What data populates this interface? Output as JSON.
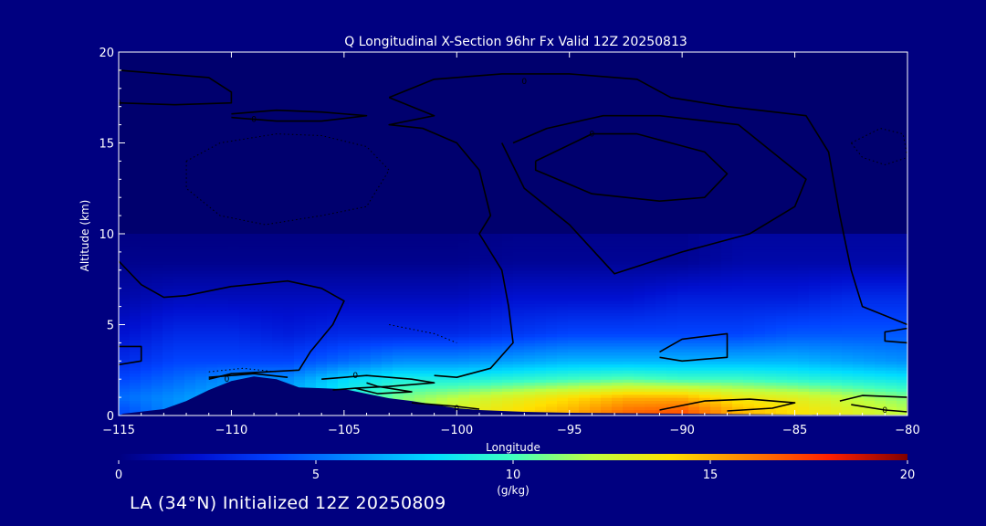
{
  "footer_label": "LA (34°N) Initialized 12Z 20250809",
  "chart_data": {
    "type": "heatmap",
    "title": "Q Longitudinal X-Section 96hr  Fx Valid 12Z 20250813",
    "xlabel": "Longitude",
    "ylabel": "Altitude (km)",
    "xlim": [
      -115,
      -80
    ],
    "ylim": [
      0,
      20
    ],
    "x_ticks": [
      -115,
      -110,
      -105,
      -100,
      -95,
      -90,
      -85,
      -80
    ],
    "y_ticks": [
      0,
      5,
      10,
      15,
      20
    ],
    "x_tick_labels": [
      "−115",
      "−110",
      "−105",
      "−100",
      "−95",
      "−90",
      "−85",
      "−80"
    ],
    "y_tick_labels": [
      "0",
      "5",
      "10",
      "15",
      "20"
    ],
    "colorbar": {
      "label": "(g/kg)",
      "range": [
        0,
        20
      ],
      "ticks": [
        0,
        5,
        10,
        15,
        20
      ],
      "tick_labels": [
        "0",
        "5",
        "10",
        "15",
        "20"
      ],
      "colormap": "rainbow (dark blue → cyan → yellow → red → dark red)"
    },
    "moisture_profiles": [
      {
        "lon": -115,
        "q": [
          4,
          5,
          4,
          3,
          2,
          1,
          0.3
        ]
      },
      {
        "lon": -112.5,
        "q": [
          6,
          6,
          5,
          4,
          3,
          1.5,
          0.3
        ]
      },
      {
        "lon": -110,
        "q": [
          7,
          7,
          6,
          4,
          3,
          1.5,
          0.3
        ]
      },
      {
        "lon": -107.5,
        "q": [
          7,
          7,
          6,
          4,
          2.5,
          1.5,
          0.3
        ]
      },
      {
        "lon": -105,
        "q": [
          9,
          9,
          8,
          5,
          3,
          1.5,
          0.3
        ]
      },
      {
        "lon": -102.5,
        "q": [
          11,
          11,
          9,
          6,
          3,
          1.5,
          0.3
        ]
      },
      {
        "lon": -100,
        "q": [
          13,
          12,
          9,
          6,
          3,
          1.5,
          0.3
        ]
      },
      {
        "lon": -97.5,
        "q": [
          14,
          13,
          9.5,
          6.5,
          3.5,
          2,
          0.5
        ]
      },
      {
        "lon": -95,
        "q": [
          15,
          14,
          10,
          7,
          4,
          2,
          0.5
        ]
      },
      {
        "lon": -92.5,
        "q": [
          16.5,
          15,
          10.5,
          7,
          4,
          2,
          0.5
        ]
      },
      {
        "lon": -90,
        "q": [
          17,
          15,
          10,
          7,
          4,
          2.5,
          0.5
        ]
      },
      {
        "lon": -87.5,
        "q": [
          15,
          13.5,
          10,
          7,
          4,
          2.5,
          1
        ]
      },
      {
        "lon": -85,
        "q": [
          14,
          13,
          9.5,
          7,
          4.5,
          2.5,
          1
        ]
      },
      {
        "lon": -82.5,
        "q": [
          13,
          12,
          9,
          6.5,
          4.5,
          3,
          1
        ]
      },
      {
        "lon": -80,
        "q": [
          12,
          11,
          8.5,
          6,
          4.5,
          3,
          1
        ]
      }
    ],
    "profile_levels_km": [
      0.2,
      1,
      2,
      3,
      4.5,
      6.5,
      8.5
    ],
    "terrain": [
      {
        "lon": -115,
        "alt": 0
      },
      {
        "lon": -114.8,
        "alt": 0.1
      },
      {
        "lon": -113,
        "alt": 0.35
      },
      {
        "lon": -112,
        "alt": 0.8
      },
      {
        "lon": -111,
        "alt": 1.4
      },
      {
        "lon": -110,
        "alt": 1.9
      },
      {
        "lon": -109,
        "alt": 2.15
      },
      {
        "lon": -108,
        "alt": 2.0
      },
      {
        "lon": -107,
        "alt": 1.55
      },
      {
        "lon": -106,
        "alt": 1.5
      },
      {
        "lon": -105,
        "alt": 1.45
      },
      {
        "lon": -104,
        "alt": 1.2
      },
      {
        "lon": -103,
        "alt": 0.95
      },
      {
        "lon": -102,
        "alt": 0.8
      },
      {
        "lon": -101,
        "alt": 0.6
      },
      {
        "lon": -100,
        "alt": 0.4
      },
      {
        "lon": -99,
        "alt": 0.3
      },
      {
        "lon": -97,
        "alt": 0.2
      },
      {
        "lon": -95,
        "alt": 0.15
      },
      {
        "lon": -90,
        "alt": 0.1
      },
      {
        "lon": -85,
        "alt": 0.05
      },
      {
        "lon": -80,
        "alt": 0.03
      }
    ],
    "contours": [
      {
        "label": "0",
        "label_at": [
          -115,
          17.2
        ],
        "points": [
          [
            -115,
            19
          ],
          [
            -113,
            18.8
          ],
          [
            -111,
            18.6
          ],
          [
            -110,
            17.8
          ],
          [
            -110,
            17.2
          ],
          [
            -112.5,
            17.1
          ],
          [
            -115,
            17.2
          ]
        ]
      },
      {
        "label": "0",
        "label_at": [
          -109,
          16.3
        ],
        "points": [
          [
            -110,
            16.6
          ],
          [
            -108,
            16.8
          ],
          [
            -106,
            16.7
          ],
          [
            -104,
            16.5
          ],
          [
            -106,
            16.2
          ],
          [
            -108,
            16.2
          ],
          [
            -110,
            16.4
          ]
        ]
      },
      {
        "label": "0",
        "label_at": [
          -97,
          18.4
        ],
        "points": [
          [
            -103,
            17.5
          ],
          [
            -101,
            18.5
          ],
          [
            -98,
            18.8
          ],
          [
            -95,
            18.8
          ],
          [
            -92,
            18.5
          ],
          [
            -90.5,
            17.5
          ],
          [
            -88,
            17
          ],
          [
            -84.5,
            16.5
          ],
          [
            -83.5,
            14.5
          ],
          [
            -83,
            11
          ],
          [
            -82.5,
            8
          ],
          [
            -82,
            6
          ],
          [
            -80,
            5
          ]
        ]
      },
      {
        "label": "",
        "points": [
          [
            -103,
            17.5
          ],
          [
            -101,
            16.5
          ],
          [
            -103,
            16
          ],
          [
            -101.5,
            15.8
          ],
          [
            -100,
            15
          ],
          [
            -99,
            13.5
          ],
          [
            -98.5,
            11
          ],
          [
            -99,
            10
          ],
          [
            -98,
            8
          ],
          [
            -97.7,
            6
          ],
          [
            -97.5,
            4
          ],
          [
            -98.5,
            2.6
          ],
          [
            -100,
            2.1
          ],
          [
            -101,
            2.2
          ]
        ]
      },
      {
        "label": "0",
        "label_at": [
          -94,
          15.5
        ],
        "points": [
          [
            -97.5,
            15
          ],
          [
            -96,
            15.8
          ],
          [
            -93.5,
            16.5
          ],
          [
            -91,
            16.5
          ],
          [
            -87.5,
            16
          ],
          [
            -84.5,
            13
          ],
          [
            -85,
            11.5
          ],
          [
            -87,
            10
          ],
          [
            -90,
            9
          ],
          [
            -93,
            7.8
          ],
          [
            -95,
            10.5
          ],
          [
            -97,
            12.5
          ],
          [
            -98,
            15
          ]
        ]
      },
      {
        "label": "",
        "points": [
          [
            -96.5,
            14
          ],
          [
            -94,
            15.5
          ],
          [
            -92,
            15.5
          ],
          [
            -89,
            14.5
          ],
          [
            -88,
            13.3
          ],
          [
            -89,
            12
          ],
          [
            -91,
            11.8
          ],
          [
            -94,
            12.2
          ],
          [
            -96.5,
            13.5
          ],
          [
            -96.5,
            14
          ]
        ]
      },
      {
        "label": "",
        "points": [
          [
            -115,
            8.5
          ],
          [
            -114,
            7.2
          ],
          [
            -113,
            6.5
          ],
          [
            -112,
            6.6
          ],
          [
            -110,
            7.1
          ],
          [
            -107.5,
            7.4
          ],
          [
            -106,
            7
          ],
          [
            -105,
            6.3
          ],
          [
            -105.5,
            5
          ],
          [
            -106.5,
            3.5
          ],
          [
            -107,
            2.5
          ],
          [
            -110,
            2.3
          ],
          [
            -111,
            2.0
          ]
        ]
      },
      {
        "label": "0",
        "label_at": [
          -110.2,
          2.0
        ],
        "points": [
          [
            -111,
            2.1
          ],
          [
            -109,
            2.3
          ],
          [
            -107.5,
            2.1
          ]
        ]
      },
      {
        "label": "",
        "points": [
          [
            -115,
            3.8
          ],
          [
            -114,
            3.8
          ],
          [
            -114,
            3.0
          ],
          [
            -115,
            2.8
          ]
        ]
      },
      {
        "label": "0",
        "label_at": [
          -104.5,
          2.2
        ],
        "points": [
          [
            -106,
            2.0
          ],
          [
            -104,
            2.2
          ],
          [
            -102,
            2.0
          ],
          [
            -101,
            1.8
          ],
          [
            -103,
            1.6
          ],
          [
            -104.5,
            1.5
          ],
          [
            -105.5,
            1.4
          ]
        ]
      },
      {
        "label": "",
        "points": [
          [
            -104,
            1.8
          ],
          [
            -103.5,
            1.6
          ],
          [
            -102,
            1.3
          ],
          [
            -103.5,
            1.2
          ],
          [
            -104.5,
            1.5
          ]
        ]
      },
      {
        "label": "",
        "points": [
          [
            -91,
            3.5
          ],
          [
            -90,
            4.2
          ],
          [
            -88,
            4.5
          ],
          [
            -88,
            3.2
          ],
          [
            -90,
            3.0
          ],
          [
            -91,
            3.2
          ]
        ]
      },
      {
        "label": "",
        "points": [
          [
            -80,
            4.8
          ],
          [
            -81,
            4.6
          ],
          [
            -81,
            4.1
          ],
          [
            -80,
            4.0
          ]
        ]
      },
      {
        "label": "0",
        "label_at": [
          -81,
          0.3
        ],
        "points": [
          [
            -83,
            0.8
          ],
          [
            -82,
            1.1
          ],
          [
            -80,
            1.0
          ],
          [
            -80,
            0.2
          ],
          [
            -81,
            0.3
          ],
          [
            -82.5,
            0.6
          ]
        ]
      },
      {
        "label": "",
        "points": [
          [
            -91,
            0.3
          ],
          [
            -89,
            0.8
          ],
          [
            -87,
            0.9
          ],
          [
            -85,
            0.7
          ],
          [
            -86,
            0.4
          ],
          [
            -88,
            0.25
          ]
        ]
      },
      {
        "label": "0",
        "label_at": [
          -100,
          0.4
        ],
        "points": [
          [
            -102,
            0.7
          ],
          [
            -100,
            0.5
          ],
          [
            -99,
            0.35
          ]
        ]
      }
    ],
    "dotted_contours": [
      {
        "points": [
          [
            -112,
            14
          ],
          [
            -110.5,
            15
          ],
          [
            -108,
            15.5
          ],
          [
            -106,
            15.4
          ],
          [
            -104,
            14.8
          ],
          [
            -103,
            13.5
          ],
          [
            -104,
            11.5
          ],
          [
            -106,
            11
          ],
          [
            -108.5,
            10.5
          ],
          [
            -110.5,
            11
          ],
          [
            -112,
            12.5
          ],
          [
            -112,
            14
          ]
        ]
      },
      {
        "points": [
          [
            -82.5,
            15
          ],
          [
            -81.2,
            15.8
          ],
          [
            -80.2,
            15.5
          ],
          [
            -80,
            14.2
          ],
          [
            -81,
            13.8
          ],
          [
            -82,
            14.2
          ],
          [
            -82.5,
            15
          ]
        ]
      },
      {
        "points": [
          [
            -111,
            2.4
          ],
          [
            -109.5,
            2.6
          ],
          [
            -108,
            2.4
          ]
        ]
      },
      {
        "points": [
          [
            -103,
            5
          ],
          [
            -101,
            4.5
          ],
          [
            -100,
            4
          ]
        ]
      }
    ]
  }
}
